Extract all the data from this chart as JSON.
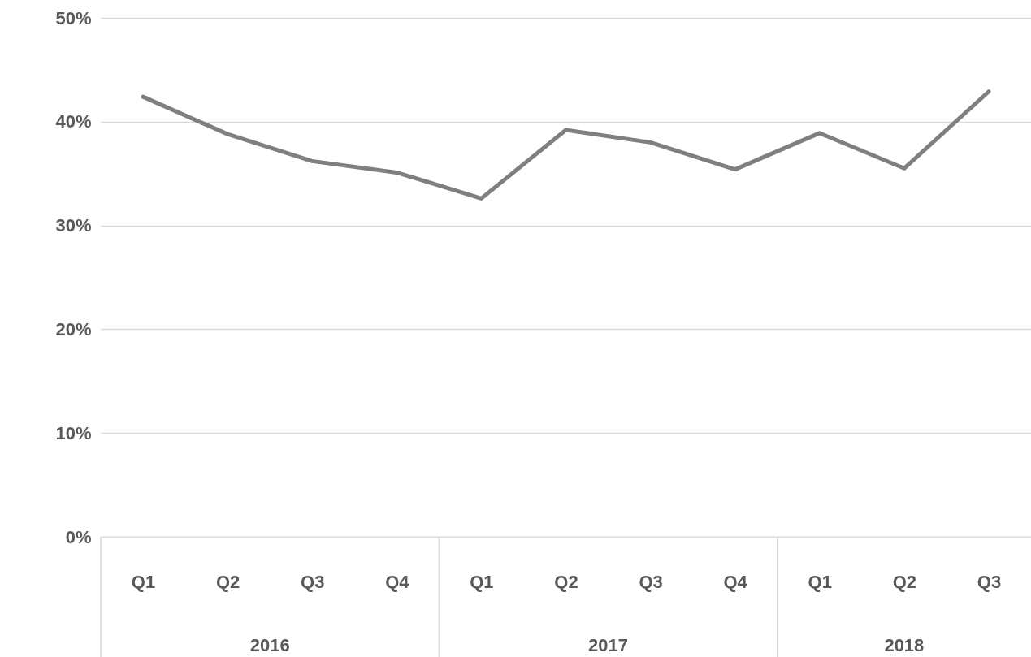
{
  "chart_data": {
    "type": "line",
    "categories": [
      "Q1",
      "Q2",
      "Q3",
      "Q4",
      "Q1",
      "Q2",
      "Q3",
      "Q4",
      "Q1",
      "Q2",
      "Q3"
    ],
    "series": [
      {
        "color": "#7f7f7f",
        "values": [
          42.4,
          38.8,
          36.2,
          35.1,
          32.6,
          39.2,
          38.0,
          35.4,
          38.9,
          35.5,
          42.9
        ]
      }
    ],
    "ylim": [
      0,
      50
    ],
    "yticks": [
      {
        "value": 0,
        "label": "0%"
      },
      {
        "value": 10,
        "label": "10%"
      },
      {
        "value": 20,
        "label": "20%"
      },
      {
        "value": 30,
        "label": "30%"
      },
      {
        "value": 40,
        "label": "40%"
      },
      {
        "value": 50,
        "label": "50%"
      }
    ],
    "grid": "y",
    "marker": "none",
    "line_style": "solid",
    "annotations": [
      "2016",
      "2017",
      "2018"
    ]
  }
}
